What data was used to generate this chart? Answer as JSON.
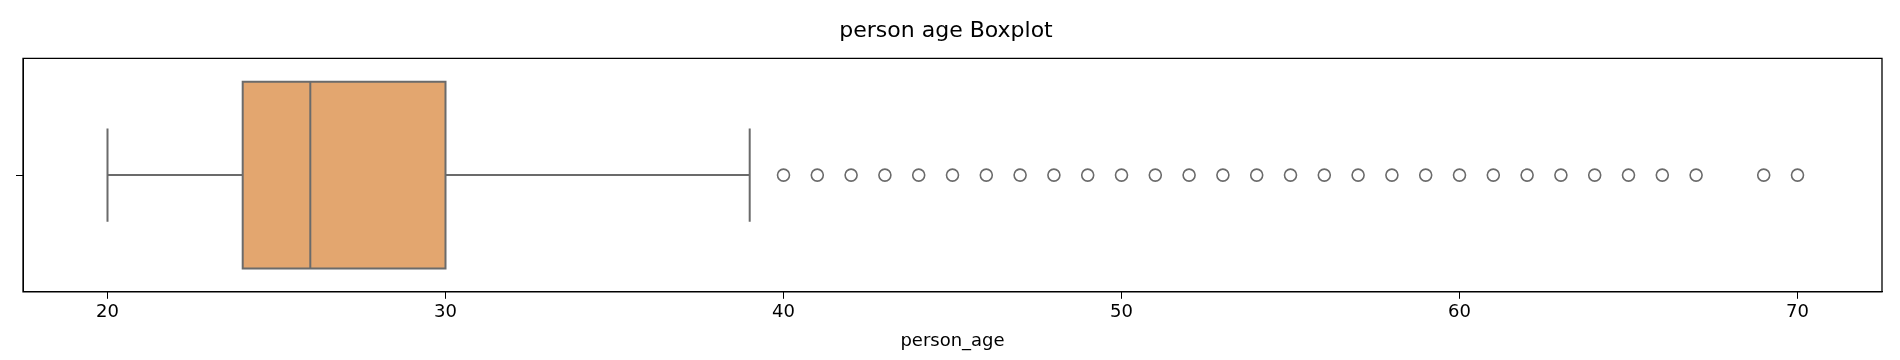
{
  "chart_data": {
    "type": "box",
    "title": "person age Boxplot",
    "xlabel": "person_age",
    "orientation": "horizontal",
    "categories": [
      null
    ],
    "color": "#e3a66f",
    "boxes": [
      {
        "low": 20,
        "q1": 24,
        "median": 26,
        "q3": 30,
        "high": 39,
        "outliers": [
          40,
          41,
          42,
          43,
          44,
          45,
          46,
          47,
          48,
          49,
          50,
          51,
          52,
          53,
          54,
          55,
          56,
          57,
          58,
          59,
          60,
          61,
          62,
          63,
          64,
          65,
          66,
          67,
          69,
          70
        ]
      }
    ],
    "xlim": [
      17.5,
      72.5
    ],
    "xticks": [
      20,
      30,
      40,
      50,
      60,
      70
    ]
  }
}
